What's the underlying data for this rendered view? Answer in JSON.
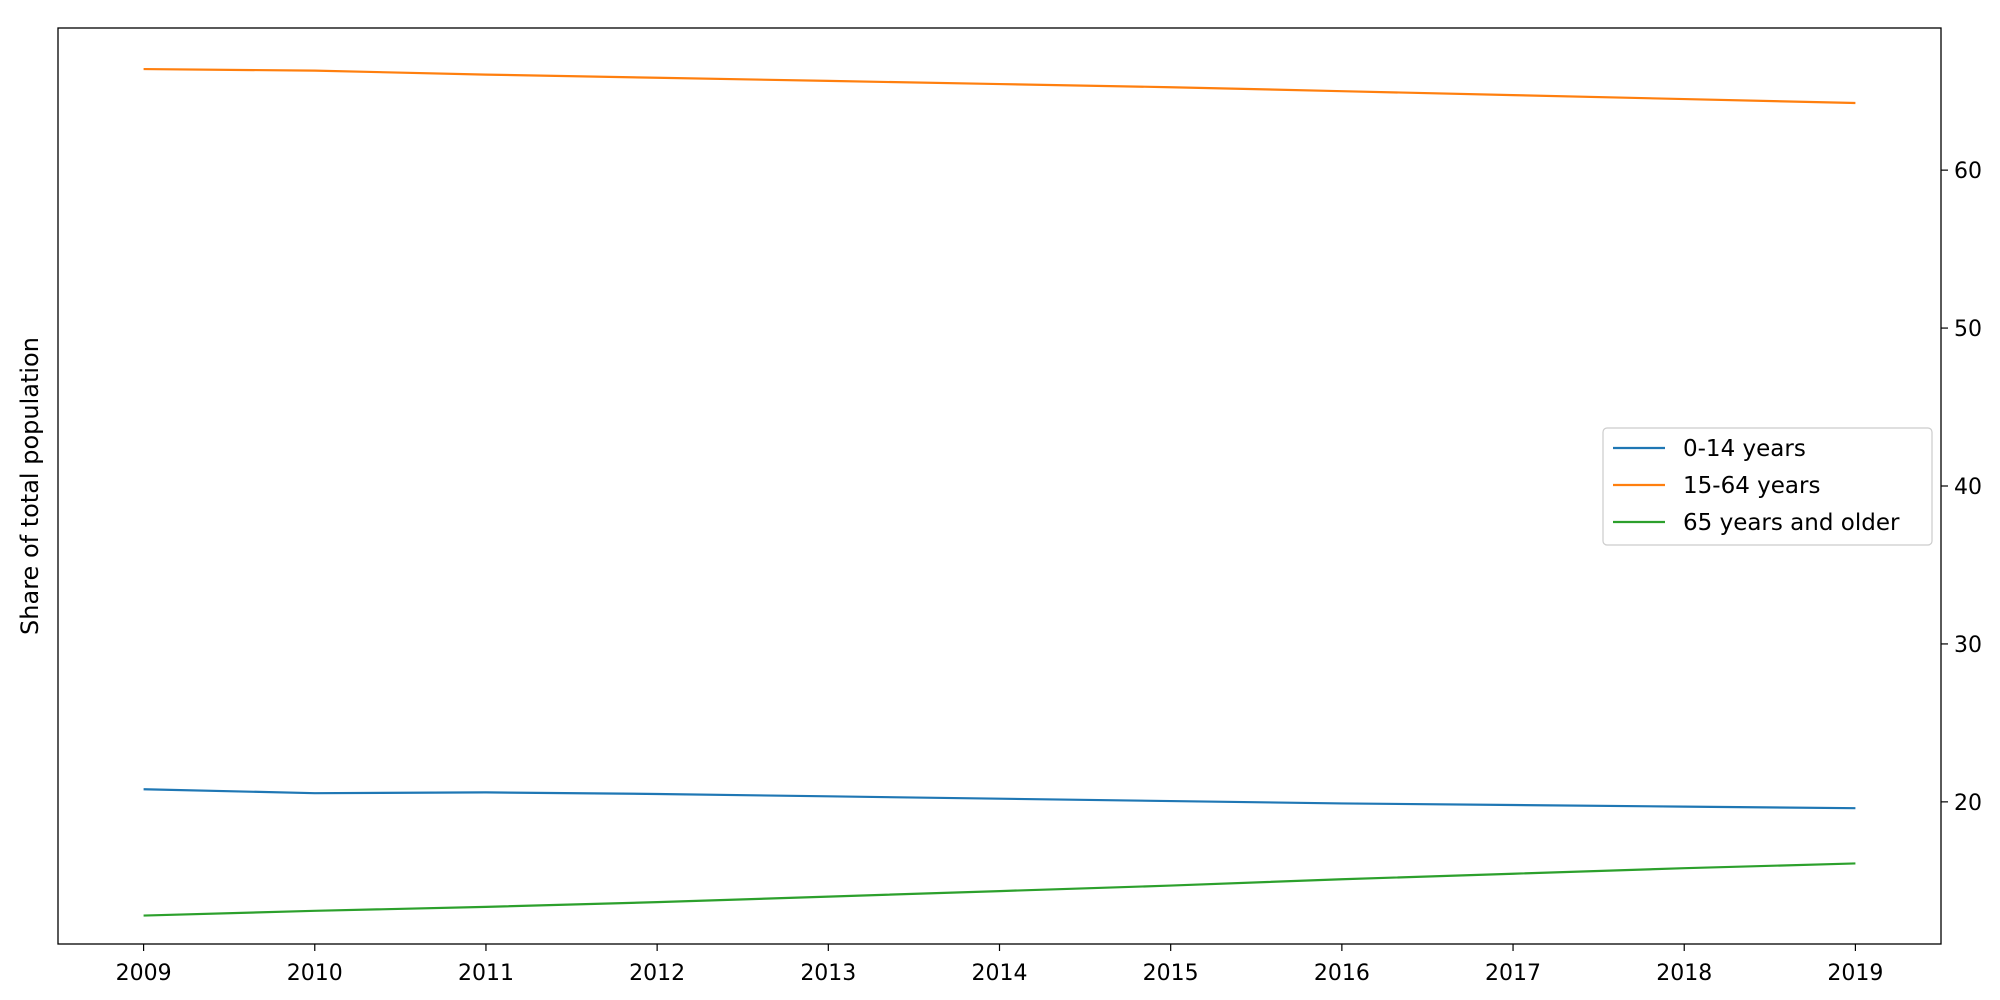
{
  "chart_data": {
    "type": "line",
    "title": "",
    "xlabel": "",
    "ylabel": "Share of total population",
    "y_axis_side": "right",
    "x": [
      2009,
      2010,
      2011,
      2012,
      2013,
      2014,
      2015,
      2016,
      2017,
      2018,
      2019
    ],
    "xlim": [
      2008.5,
      2019.5
    ],
    "ylim": [
      11.0,
      69.0
    ],
    "xticks": [
      2009,
      2010,
      2011,
      2012,
      2013,
      2014,
      2015,
      2016,
      2017,
      2018,
      2019
    ],
    "yticks": [
      20,
      30,
      40,
      50,
      60
    ],
    "grid": false,
    "legend_position": "center-right",
    "series": [
      {
        "name": "0-14 years",
        "color": "#1f77b4",
        "values": [
          20.8,
          20.55,
          20.6,
          20.5,
          20.35,
          20.2,
          20.05,
          19.9,
          19.8,
          19.7,
          19.6
        ]
      },
      {
        "name": "15-64 years",
        "color": "#ff7f0e",
        "values": [
          66.4,
          66.3,
          66.05,
          65.85,
          65.65,
          65.45,
          65.25,
          65.0,
          64.75,
          64.5,
          64.25
        ]
      },
      {
        "name": "65 years and older",
        "color": "#2ca02c",
        "values": [
          12.8,
          13.1,
          13.35,
          13.65,
          14.0,
          14.35,
          14.7,
          15.1,
          15.45,
          15.8,
          16.1
        ]
      }
    ]
  }
}
